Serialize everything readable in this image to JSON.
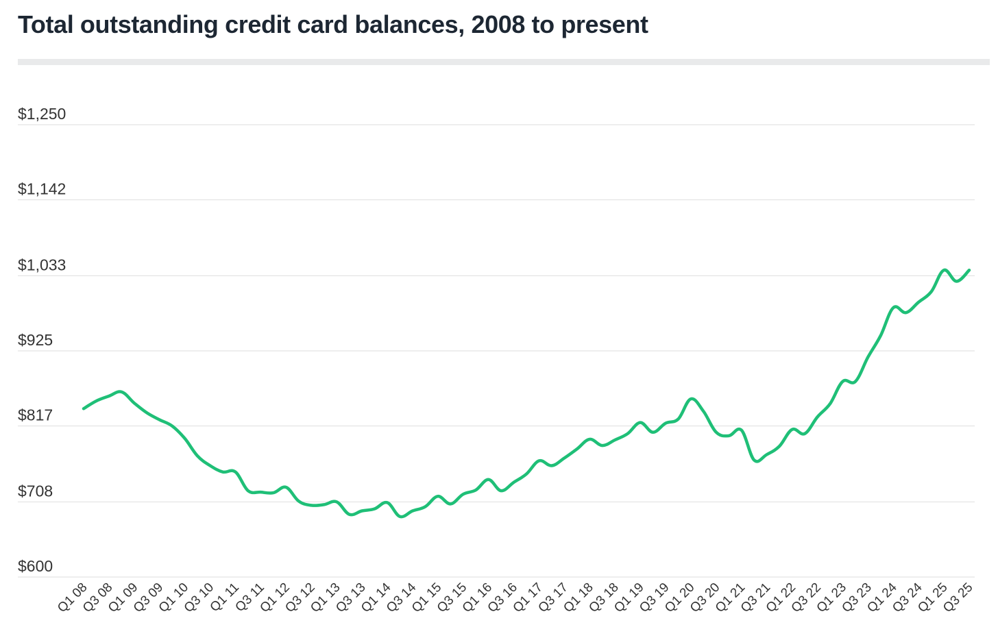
{
  "chart_data": {
    "type": "line",
    "title": "Total outstanding credit card balances, 2008 to present",
    "xlabel": "",
    "ylabel": "",
    "ylim": [
      600,
      1250
    ],
    "y_ticks": [
      "$600",
      "$708",
      "$817",
      "$925",
      "$1,033",
      "$1,142",
      "$1,250"
    ],
    "y_tick_values": [
      600,
      708,
      817,
      925,
      1033,
      1142,
      1250
    ],
    "grid": true,
    "legend": "none",
    "line_color": "#1fbf77",
    "x_tick_labels": [
      "Q1 08",
      "Q3 08",
      "Q1 09",
      "Q3 09",
      "Q1 10",
      "Q3 10",
      "Q1 11",
      "Q3 11",
      "Q1 12",
      "Q3 12",
      "Q1 13",
      "Q3 13",
      "Q1 14",
      "Q3 14",
      "Q1 15",
      "Q3 15",
      "Q1 16",
      "Q3 16",
      "Q1 17",
      "Q3 17",
      "Q1 18",
      "Q3 18",
      "Q1 19",
      "Q3 19",
      "Q1 20",
      "Q3 20",
      "Q1 21",
      "Q3 21",
      "Q1 22",
      "Q3 22",
      "Q1 23",
      "Q3 23",
      "Q1 24",
      "Q3 24",
      "Q1 25",
      "Q3 25"
    ],
    "x": [
      "Q1 08",
      "Q2 08",
      "Q3 08",
      "Q4 08",
      "Q1 09",
      "Q2 09",
      "Q3 09",
      "Q4 09",
      "Q1 10",
      "Q2 10",
      "Q3 10",
      "Q4 10",
      "Q1 11",
      "Q2 11",
      "Q3 11",
      "Q4 11",
      "Q1 12",
      "Q2 12",
      "Q3 12",
      "Q4 12",
      "Q1 13",
      "Q2 13",
      "Q3 13",
      "Q4 13",
      "Q1 14",
      "Q2 14",
      "Q3 14",
      "Q4 14",
      "Q1 15",
      "Q2 15",
      "Q3 15",
      "Q4 15",
      "Q1 16",
      "Q2 16",
      "Q3 16",
      "Q4 16",
      "Q1 17",
      "Q2 17",
      "Q3 17",
      "Q4 17",
      "Q1 18",
      "Q2 18",
      "Q3 18",
      "Q4 18",
      "Q1 19",
      "Q2 19",
      "Q3 19",
      "Q4 19",
      "Q1 20",
      "Q2 20",
      "Q3 20",
      "Q4 20",
      "Q1 21",
      "Q2 21",
      "Q3 21",
      "Q4 21",
      "Q1 22",
      "Q2 22",
      "Q3 22",
      "Q4 22",
      "Q1 23",
      "Q2 23",
      "Q3 23",
      "Q4 23",
      "Q1 24",
      "Q2 24",
      "Q3 24",
      "Q4 24",
      "Q1 25",
      "Q2 25",
      "Q3 25"
    ],
    "values": [
      842,
      853,
      860,
      866,
      850,
      836,
      826,
      817,
      799,
      774,
      760,
      751,
      751,
      724,
      722,
      721,
      729,
      709,
      703,
      704,
      708,
      690,
      695,
      698,
      707,
      687,
      695,
      701,
      716,
      705,
      719,
      725,
      740,
      724,
      736,
      748,
      767,
      760,
      771,
      784,
      798,
      789,
      797,
      806,
      822,
      808,
      821,
      827,
      856,
      838,
      808,
      803,
      811,
      768,
      776,
      788,
      812,
      806,
      830,
      849,
      881,
      881,
      916,
      947,
      987,
      980,
      995,
      1010,
      1041,
      1025,
      1041
    ]
  }
}
